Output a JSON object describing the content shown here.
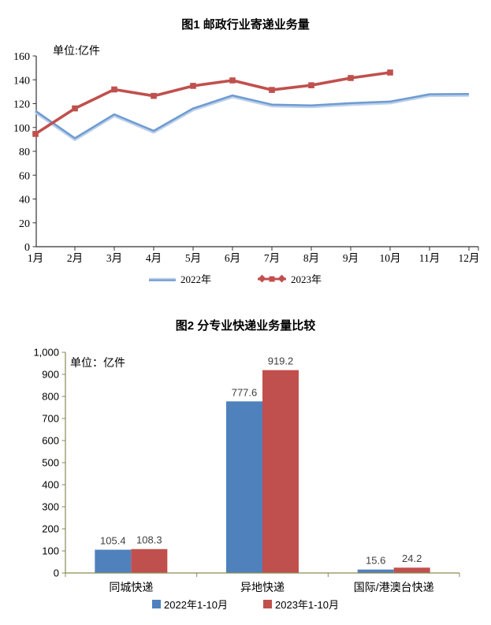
{
  "page": {
    "background": "#FFFFFF"
  },
  "colors": {
    "line_2022": "#6F9BD2",
    "line_2022_halo": "#BCD0EA",
    "series_red": "#C0504D",
    "bar_2022_blue": "#4F81BD",
    "axis_chart1": "#333333",
    "axis_chart2": "#8A8A55",
    "data_label": "#3F3F3F",
    "tick_text": "#000000"
  },
  "chart_data": [
    {
      "type": "line",
      "title": "图1  邮政行业寄递业务量",
      "unit_label": "单位:亿件",
      "xlabel": "",
      "ylabel": "亿件",
      "ylim": [
        0,
        160
      ],
      "ytick_step": 20,
      "y_ticks": [
        "0",
        "20",
        "40",
        "60",
        "80",
        "100",
        "120",
        "140",
        "160"
      ],
      "x_labels": [
        "1月",
        "2月",
        "3月",
        "4月",
        "5月",
        "6月",
        "7月",
        "8月",
        "9月",
        "10月",
        "11月",
        "12月"
      ],
      "grid": false,
      "legend_position": "bottom",
      "series": [
        {
          "name": "2022年",
          "color": "#6F9BD2",
          "marker": "none",
          "values": [
            113.9,
            91.0,
            111.0,
            97.2,
            116.0,
            126.9,
            119.2,
            118.5,
            120.4,
            121.7,
            127.9,
            128.1
          ]
        },
        {
          "name": "2023年",
          "color": "#C0504D",
          "marker": "square",
          "values": [
            94.6,
            116.0,
            131.9,
            126.5,
            134.9,
            139.5,
            131.5,
            135.4,
            141.5,
            146.1
          ]
        }
      ]
    },
    {
      "type": "bar",
      "title": "图2  分专业快递业务量比较",
      "unit_label": "单位：亿件",
      "xlabel": "",
      "ylabel": "亿件",
      "ylim": [
        0,
        1000
      ],
      "ytick_step": 100,
      "y_ticks": [
        "0",
        "100",
        "200",
        "300",
        "400",
        "500",
        "600",
        "700",
        "800",
        "900",
        "1,000"
      ],
      "categories": [
        "同城快递",
        "异地快递",
        "国际/港澳台快递"
      ],
      "grid": false,
      "legend_position": "bottom",
      "data_labels_shown": true,
      "series": [
        {
          "name": "2022年1-10月",
          "color": "#4F81BD",
          "values": [
            105.4,
            777.6,
            15.6
          ],
          "labels": [
            "105.4",
            "777.6",
            "15.6"
          ]
        },
        {
          "name": "2023年1-10月",
          "color": "#C0504D",
          "values": [
            108.3,
            919.2,
            24.2
          ],
          "labels": [
            "108.3",
            "919.2",
            "24.2"
          ]
        }
      ]
    }
  ]
}
